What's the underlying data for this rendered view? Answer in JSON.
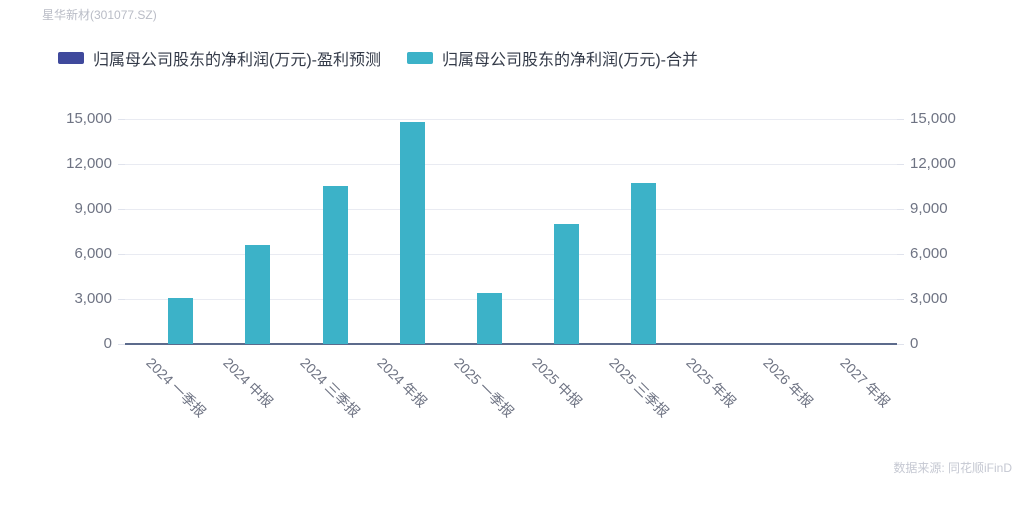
{
  "header": {
    "stock_label": "星华新材(301077.SZ)"
  },
  "legend": {
    "items": [
      {
        "label": "归属母公司股东的净利润(万元)-盈利预测",
        "color": "#3f499c"
      },
      {
        "label": "归属母公司股东的净利润(万元)-合并",
        "color": "#3cb2c8"
      }
    ]
  },
  "footer": {
    "source_label": "数据来源: 同花顺iFinD"
  },
  "colors": {
    "bar_teal": "#3cb2c8",
    "forecast_navy": "#3f499c",
    "axis_line": "#5c6b8c",
    "gridline": "#e9ebf2",
    "axis_label": "#6e7383",
    "title_gray": "#b9bcc6",
    "source_gray": "#c5c8d2"
  },
  "chart_data": {
    "type": "bar",
    "title": "星华新材(301077.SZ)",
    "categories": [
      "2024 一季报",
      "2024 中报",
      "2024 三季报",
      "2024 年报",
      "2025 一季报",
      "2025 中报",
      "2025 三季报",
      "2025 年报",
      "2026 年报",
      "2027 年报"
    ],
    "series": [
      {
        "name": "归属母公司股东的净利润(万元)-盈利预测",
        "color": "#3f499c",
        "values": [
          null,
          null,
          null,
          null,
          null,
          null,
          null,
          null,
          null,
          null
        ]
      },
      {
        "name": "归属母公司股东的净利润(万元)-合并",
        "color": "#3cb2c8",
        "values": [
          3100,
          6600,
          10550,
          14800,
          3400,
          8000,
          10750,
          null,
          null,
          null
        ]
      }
    ],
    "xlabel": "",
    "ylabel": "",
    "ylim": [
      0,
      15000
    ],
    "ytick_step": 3000,
    "ytick_labels": [
      "0",
      "3,000",
      "6,000",
      "9,000",
      "12,000",
      "15,000"
    ],
    "grid": true,
    "dual_y_axis": true,
    "legend_position": "top",
    "x_label_rotation_deg": 45
  }
}
